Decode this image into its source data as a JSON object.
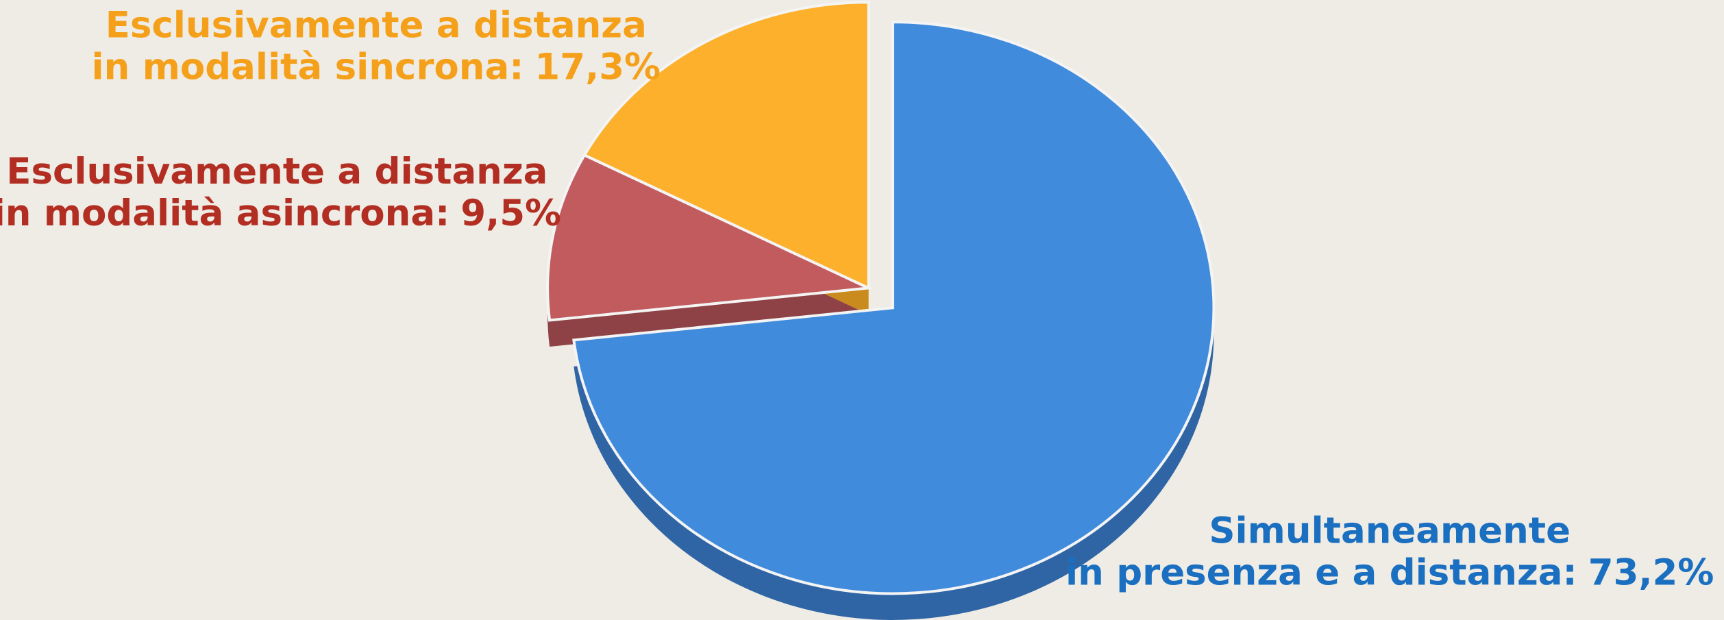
{
  "chart_data": {
    "type": "pie",
    "categories": [
      [
        "Simultaneamente",
        "in presenza e a distanza:"
      ],
      [
        "Esclusivamente a distanza",
        "in modalità asincrona:"
      ],
      [
        "Esclusivamente a distanza",
        "in modalità sincrona:"
      ]
    ],
    "values": [
      73.2,
      9.5,
      17.3
    ],
    "value_labels": [
      "73,2%",
      "9,5%",
      "17,3%"
    ],
    "colors": [
      "#418bdc",
      "#c25b5e",
      "#fdb02b"
    ],
    "side_colors": [
      "#2f65a5",
      "#8e4245",
      "#c98a1e"
    ],
    "label_colors": [
      "#1a6fc0",
      "#b32e22",
      "#f5a01a"
    ]
  }
}
